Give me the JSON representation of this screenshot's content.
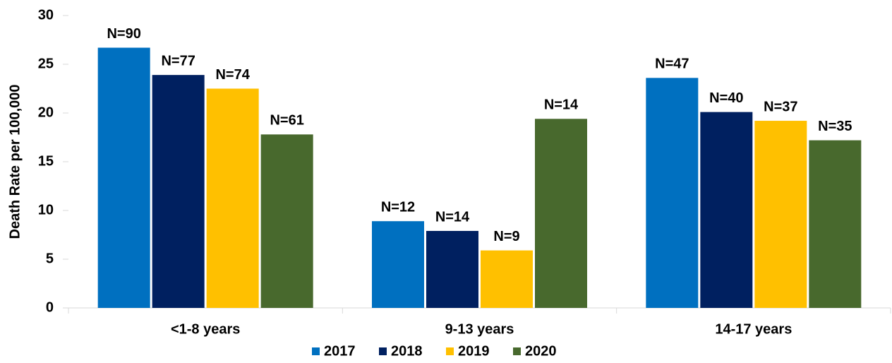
{
  "chart_data": {
    "type": "bar",
    "y_label": "Death Rate per 100,000",
    "categories": [
      "<1-8 years",
      "9-13 years",
      "14-17 years"
    ],
    "series": [
      {
        "name": "2017",
        "color": "#0070c0",
        "values": [
          26.7,
          8.9,
          23.6
        ],
        "labels": [
          "N=90",
          "N=12",
          "N=47"
        ]
      },
      {
        "name": "2018",
        "color": "#002060",
        "values": [
          23.9,
          7.9,
          20.1
        ],
        "labels": [
          "N=77",
          "N=14",
          "N=40"
        ]
      },
      {
        "name": "2019",
        "color": "#ffc000",
        "values": [
          22.5,
          5.9,
          19.2
        ],
        "labels": [
          "N=74",
          "N=9",
          "N=37"
        ]
      },
      {
        "name": "2020",
        "color": "#48692d",
        "values": [
          17.8,
          19.4,
          17.2
        ],
        "labels": [
          "N=61",
          "N=14",
          "N=35"
        ]
      }
    ],
    "ylim": [
      0,
      30
    ],
    "yticks": [
      0,
      5,
      10,
      15,
      20,
      25,
      30
    ],
    "grid": false,
    "legend": "bottom"
  }
}
